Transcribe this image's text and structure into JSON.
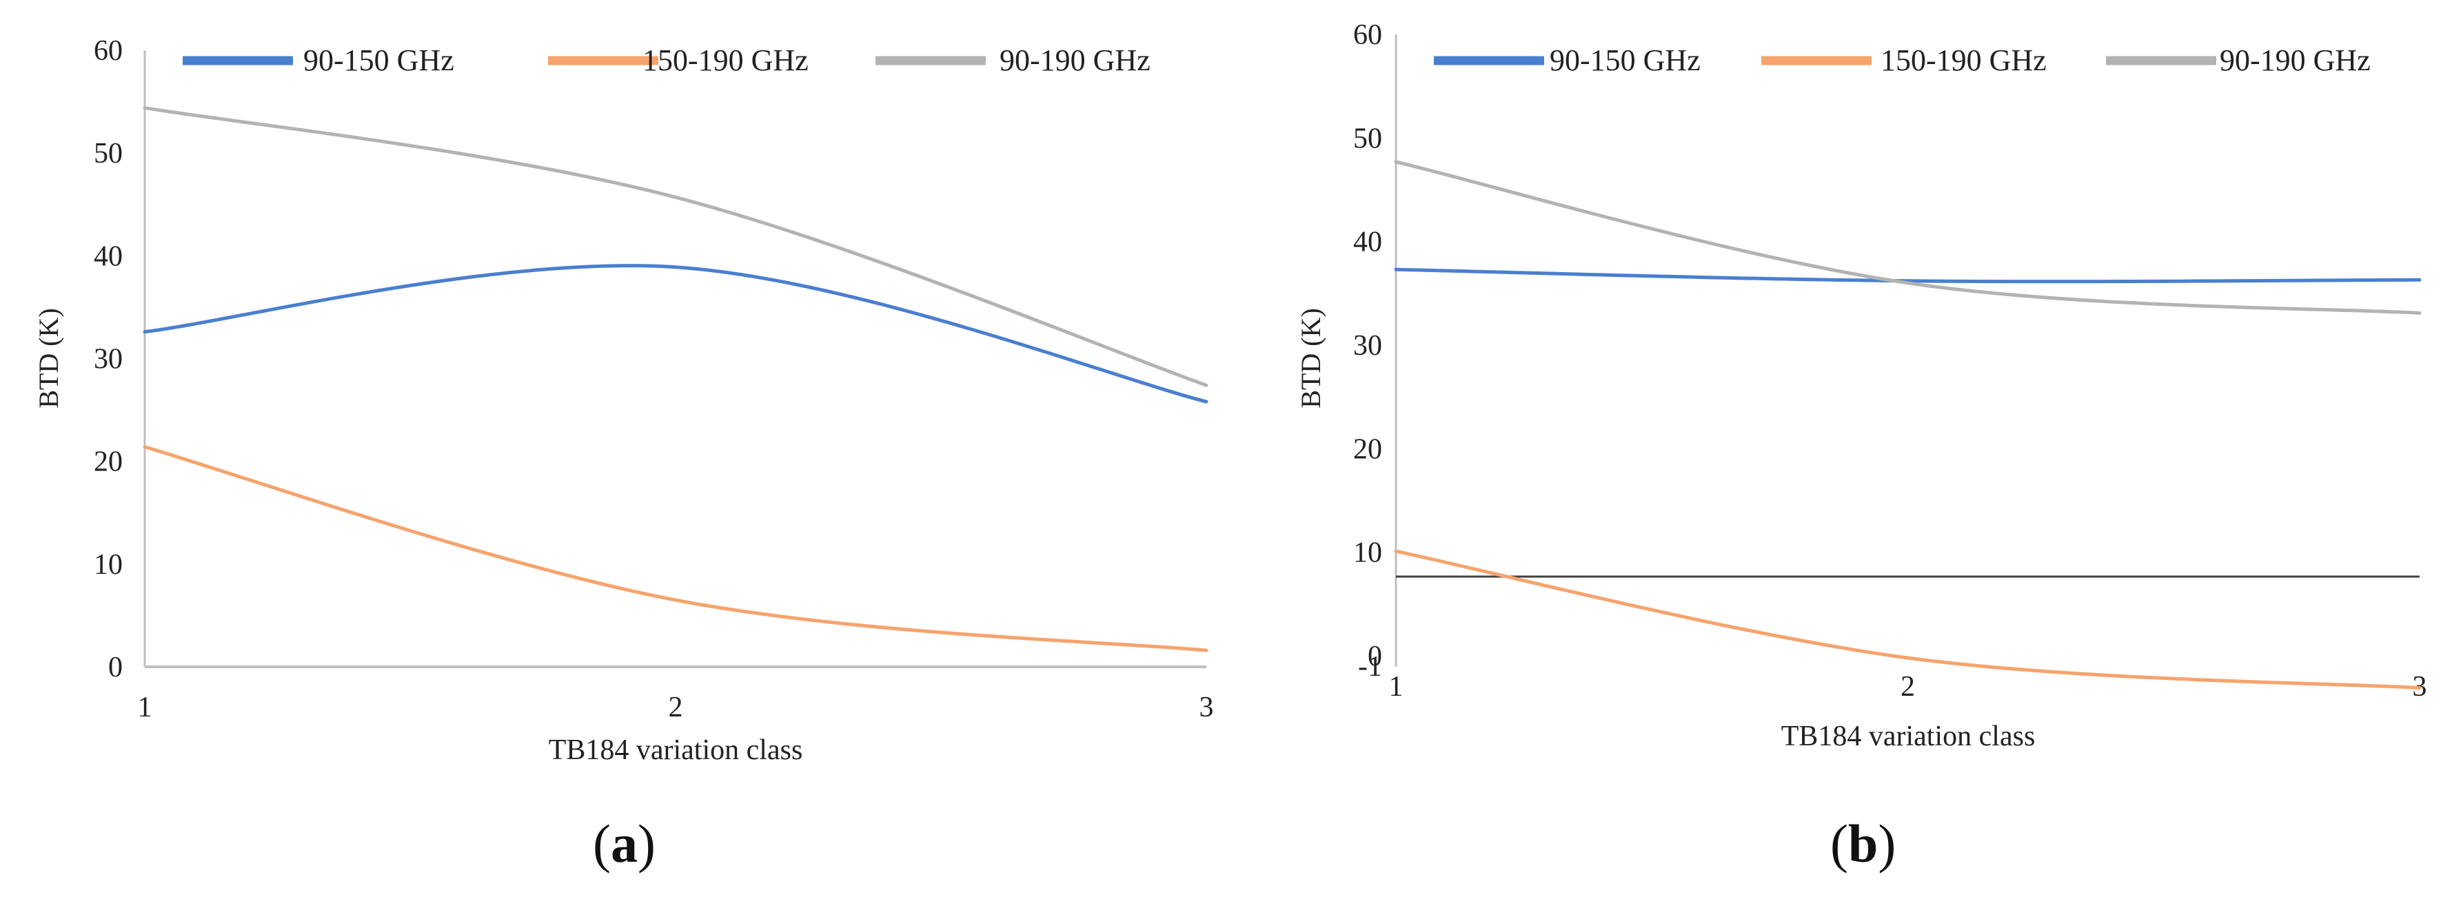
{
  "chart_data": [
    {
      "type": "line",
      "panel_label": "a",
      "xlabel": "TB184 variation class",
      "ylabel": "BTD (K)",
      "categories": [
        "1",
        "2",
        "3"
      ],
      "x": [
        1,
        2,
        3
      ],
      "xlim": [
        1,
        3
      ],
      "ylim": [
        0,
        60
      ],
      "yticks": [
        "0",
        "10",
        "20",
        "30",
        "40",
        "50",
        "60"
      ],
      "grid": false,
      "legend_position": "top",
      "series": [
        {
          "name": "90-150 GHz",
          "values": [
            32.6,
            38.9,
            25.8
          ],
          "color": "#4a7fd0"
        },
        {
          "name": "150-190 GHz",
          "values": [
            21.4,
            6.5,
            1.6
          ],
          "color": "#f6a36c"
        },
        {
          "name": "90-190 GHz",
          "values": [
            54.4,
            45.7,
            27.4
          ],
          "color": "#b3b3b3"
        }
      ]
    },
    {
      "type": "line",
      "panel_label": "b",
      "xlabel": "TB184 variation class",
      "ylabel": "BTD (K)",
      "categories": [
        "1",
        "2",
        "3"
      ],
      "x": [
        1,
        2,
        3
      ],
      "xlim": [
        1,
        3
      ],
      "ylim": [
        -1,
        60
      ],
      "yticks": [
        "-1",
        "0",
        "10",
        "20",
        "30",
        "40",
        "50",
        "60"
      ],
      "grid": false,
      "legend_position": "top",
      "series": [
        {
          "name": "90-150 GHz",
          "values": [
            37.3,
            36.2,
            36.3
          ],
          "color": "#4a7fd0"
        },
        {
          "name": "150-190 GHz",
          "values": [
            10.1,
            -0.2,
            -3.1
          ],
          "color": "#f6a36c"
        },
        {
          "name": "90-190 GHz",
          "values": [
            47.7,
            36.0,
            33.1
          ],
          "color": "#b3b3b3"
        }
      ]
    }
  ]
}
